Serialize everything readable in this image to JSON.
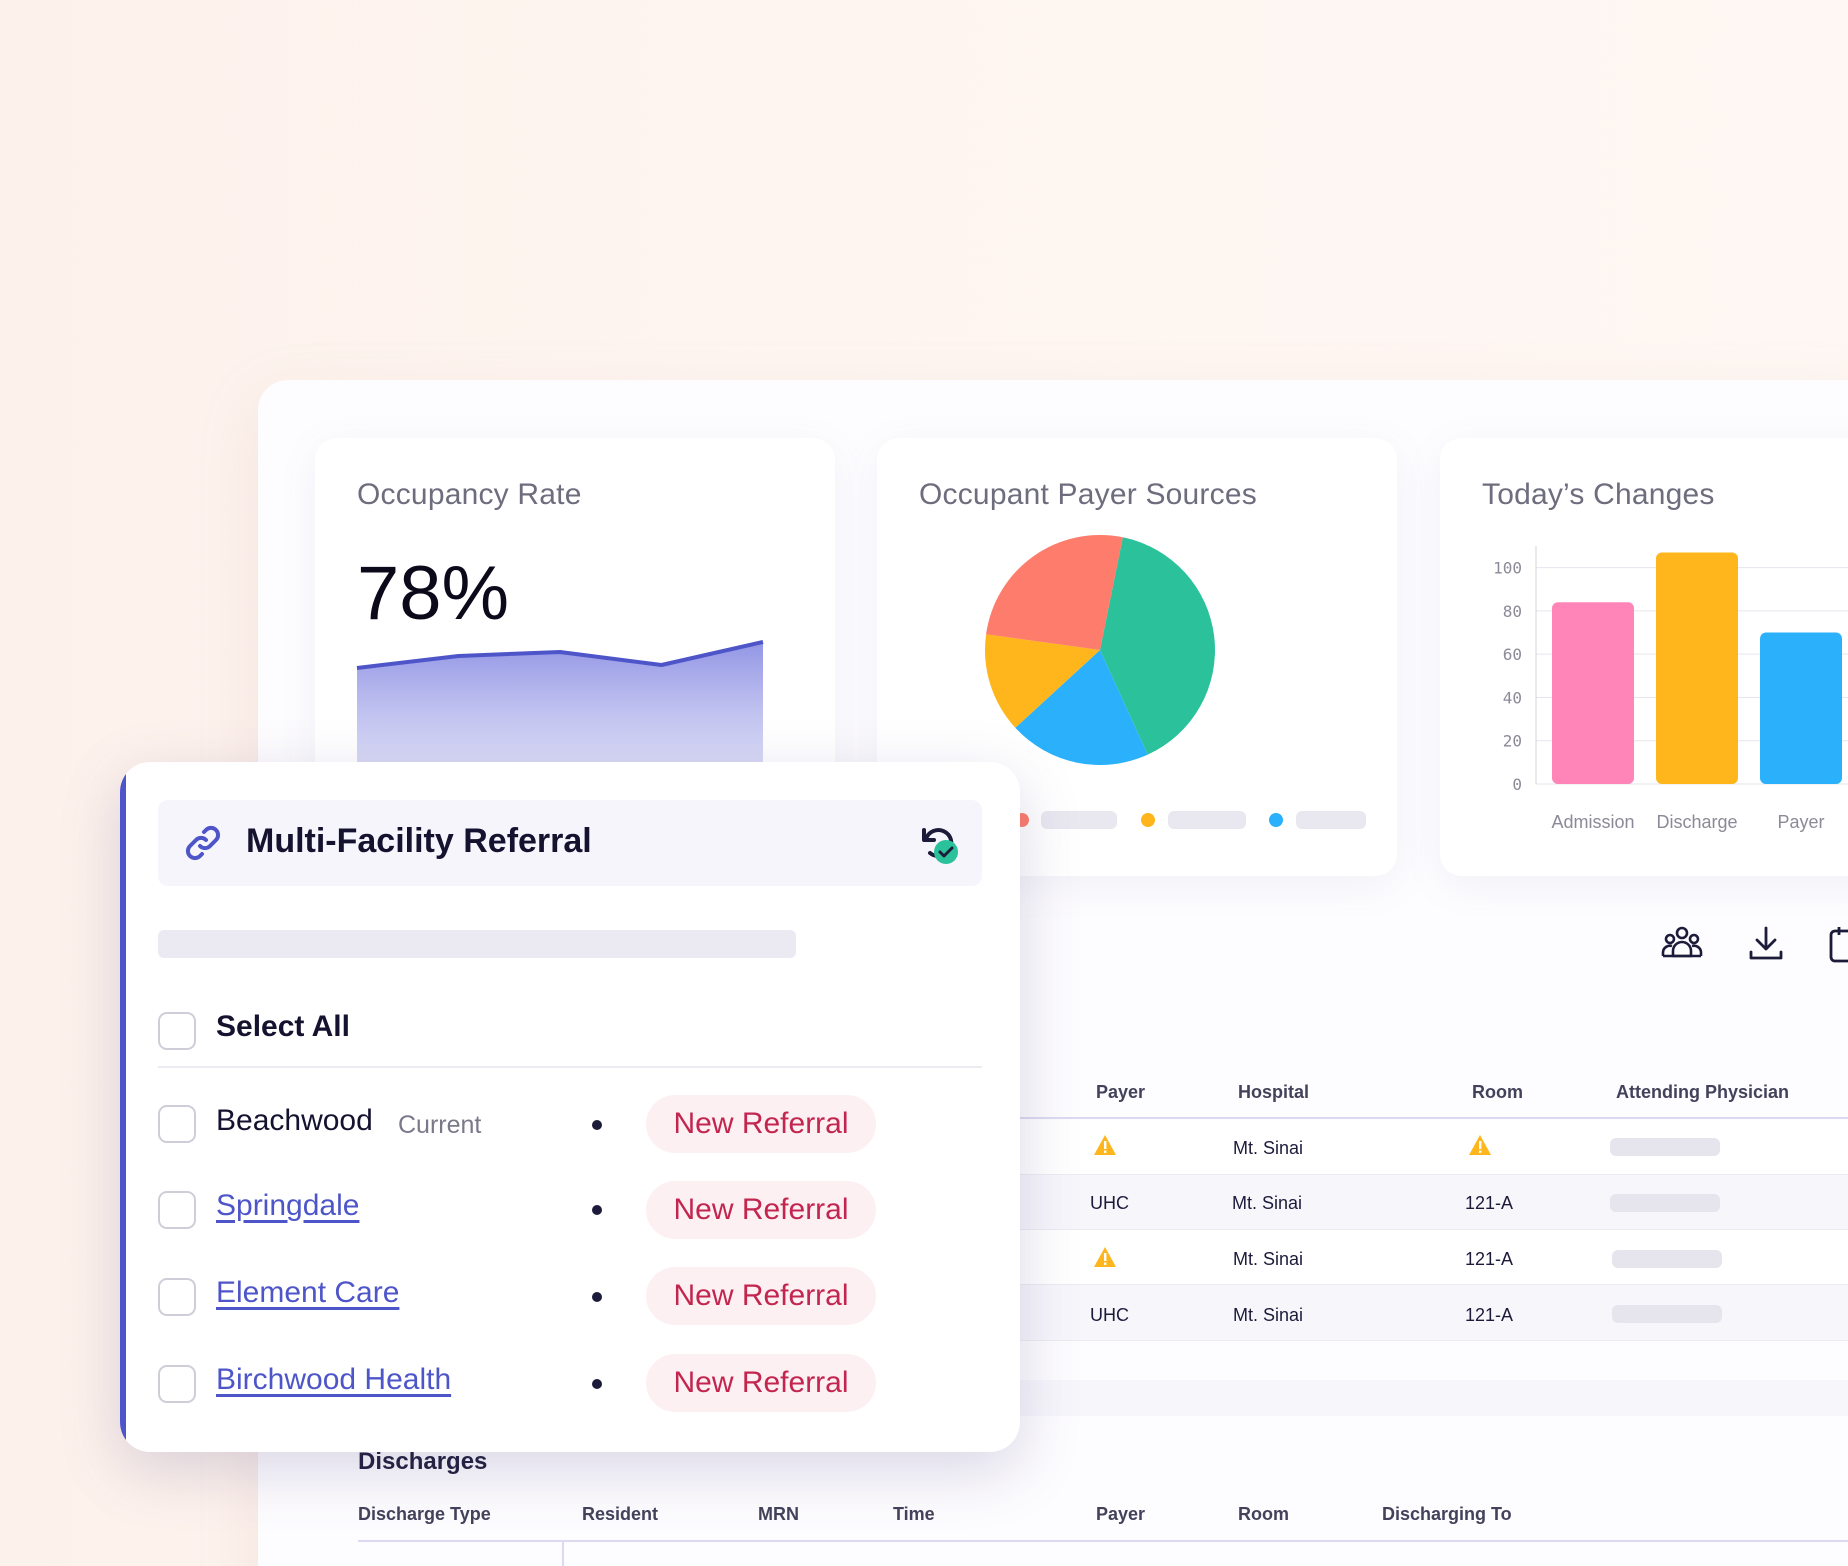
{
  "dashboard": {
    "occupancy": {
      "title": "Occupancy Rate",
      "value": "78%",
      "trend": [
        30,
        18,
        14,
        27,
        4
      ]
    },
    "payer_sources": {
      "title": "Occupant Payer Sources"
    },
    "todays_changes": {
      "title": "Today’s Changes"
    },
    "colors": {
      "accent": "#4e55c9",
      "pink": "#ff85b8",
      "yellow": "#ffb61c",
      "blue": "#2bb1fb",
      "teal": "#2bc29b",
      "coral": "#fe7c6b",
      "warning": "#ffb61c"
    }
  },
  "chart_data": [
    {
      "type": "pie",
      "slices": [
        {
          "label": "",
          "value": 40,
          "color": "#2bc29b"
        },
        {
          "label": "",
          "value": 20,
          "color": "#2bb1fb"
        },
        {
          "label": "",
          "value": 14,
          "color": "#ffb61c"
        },
        {
          "label": "",
          "value": 26,
          "color": "#fe7c6b"
        }
      ]
    },
    {
      "type": "bar",
      "categories": [
        "Admission",
        "Discharge",
        "Payer"
      ],
      "values": [
        84,
        107,
        70
      ],
      "colors": [
        "#ff85b8",
        "#ffb61c",
        "#2bb1fb"
      ],
      "yticks": [
        "100",
        "80",
        "60",
        "40",
        "20",
        "0"
      ],
      "ylim": [
        0,
        110
      ]
    }
  ],
  "toolbar": {
    "icons": [
      "group-icon",
      "download-icon",
      "calendar-icon"
    ]
  },
  "admissions_table": {
    "headers": {
      "payer": "Payer",
      "hospital": "Hospital",
      "room": "Room",
      "physician": "Attending Physician"
    },
    "rows": [
      {
        "payer": "",
        "payer_warning": true,
        "hospital": "Mt. Sinai",
        "room": "",
        "room_warning": true
      },
      {
        "payer": "UHC",
        "payer_warning": false,
        "hospital": "Mt. Sinai",
        "room": "121-A",
        "room_warning": false
      },
      {
        "payer": "",
        "payer_warning": true,
        "hospital": "Mt. Sinai",
        "room": "121-A",
        "room_warning": false
      },
      {
        "payer": "UHC",
        "payer_warning": false,
        "hospital": "Mt. Sinai",
        "room": "121-A",
        "room_warning": false
      }
    ]
  },
  "discharges": {
    "title": "Discharges",
    "headers": {
      "type": "Discharge Type",
      "resident": "Resident",
      "mrn": "MRN",
      "time": "Time",
      "payer": "Payer",
      "room": "Room",
      "to": "Discharging To"
    }
  },
  "referral_modal": {
    "title": "Multi-Facility Referral",
    "select_all": "Select All",
    "facilities": [
      {
        "name": "Beachwood",
        "tag": "Current",
        "status": "New Referral",
        "link": false
      },
      {
        "name": "Springdale",
        "tag": "",
        "status": "New Referral",
        "link": true
      },
      {
        "name": "Element Care",
        "tag": "",
        "status": "New Referral",
        "link": true
      },
      {
        "name": "Birchwood Health",
        "tag": "",
        "status": "New Referral",
        "link": true
      }
    ]
  }
}
